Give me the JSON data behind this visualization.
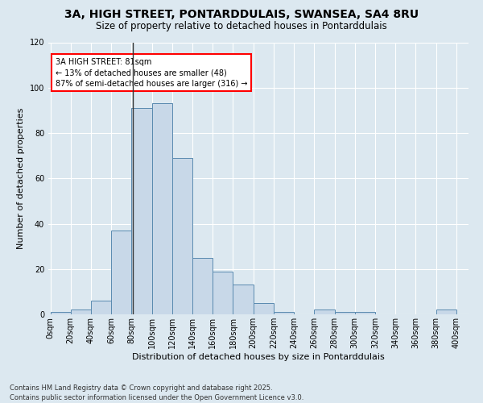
{
  "title1": "3A, HIGH STREET, PONTARDDULAIS, SWANSEA, SA4 8RU",
  "title2": "Size of property relative to detached houses in Pontarddulais",
  "xlabel": "Distribution of detached houses by size in Pontarddulais",
  "ylabel": "Number of detached properties",
  "bins": [
    0,
    20,
    40,
    60,
    80,
    100,
    120,
    140,
    160,
    180,
    200,
    220,
    240,
    260,
    280,
    300,
    320,
    340,
    360,
    380,
    400
  ],
  "counts": [
    1,
    2,
    6,
    37,
    91,
    93,
    69,
    25,
    19,
    13,
    5,
    1,
    0,
    2,
    1,
    1,
    0,
    0,
    0,
    2
  ],
  "bar_color": "#c8d8e8",
  "bar_edge_color": "#5a8ab0",
  "annotation_text": "3A HIGH STREET: 81sqm\n← 13% of detached houses are smaller (48)\n87% of semi-detached houses are larger (316) →",
  "vline_x": 81,
  "vline_color": "#333333",
  "bg_color": "#dce8f0",
  "fig_bg_color": "#dce8f0",
  "footer_text": "Contains HM Land Registry data © Crown copyright and database right 2025.\nContains public sector information licensed under the Open Government Licence v3.0.",
  "ylim": [
    0,
    120
  ],
  "title_fontsize": 10,
  "subtitle_fontsize": 8.5,
  "axis_label_fontsize": 8,
  "tick_fontsize": 7,
  "footer_fontsize": 6,
  "annotation_fontsize": 7
}
